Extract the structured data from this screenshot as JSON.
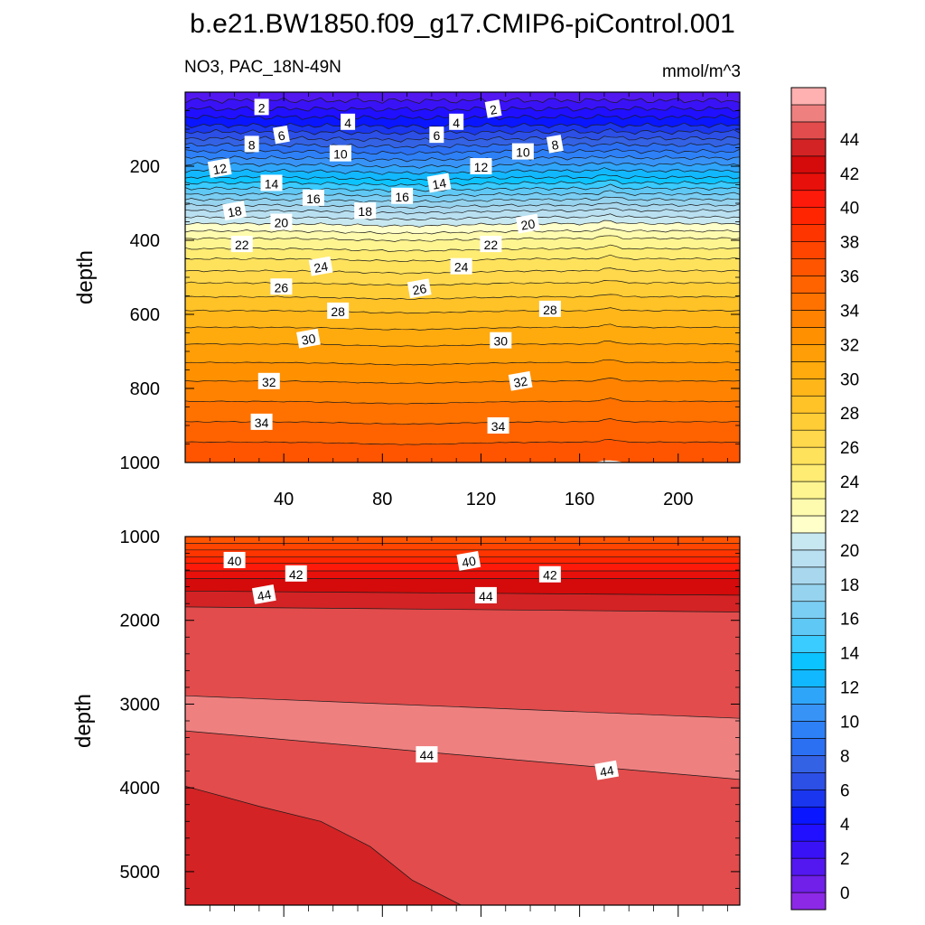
{
  "title": "b.e21.BW1850.f09_g17.CMIP6-piControl.001",
  "chart_data": [
    {
      "type": "contour",
      "panel": "upper",
      "variable_label": "NO3, PAC_18N-49N",
      "units_label": "mmol/m^3",
      "ylabel": "depth",
      "xlim": [
        0,
        225
      ],
      "ylim": [
        0,
        1000
      ],
      "y_inverted": true,
      "x_ticks": [
        "40",
        "80",
        "120",
        "160",
        "200"
      ],
      "x_tick_values": [
        40,
        80,
        120,
        160,
        200
      ],
      "y_ticks": [
        "200",
        "400",
        "600",
        "800",
        "1000"
      ],
      "y_tick_values": [
        200,
        400,
        600,
        800,
        1000
      ],
      "levels_depth": [
        {
          "level": 0,
          "depth": 0
        },
        {
          "level": 2,
          "depth": 45
        },
        {
          "level": 4,
          "depth": 90
        },
        {
          "level": 6,
          "depth": 125
        },
        {
          "level": 8,
          "depth": 160
        },
        {
          "level": 10,
          "depth": 195
        },
        {
          "level": 12,
          "depth": 230
        },
        {
          "level": 14,
          "depth": 260
        },
        {
          "level": 16,
          "depth": 290
        },
        {
          "level": 18,
          "depth": 320
        },
        {
          "level": 20,
          "depth": 355
        },
        {
          "level": 22,
          "depth": 395
        },
        {
          "level": 24,
          "depth": 450
        },
        {
          "level": 26,
          "depth": 515
        },
        {
          "level": 28,
          "depth": 590
        },
        {
          "level": 30,
          "depth": 680
        },
        {
          "level": 32,
          "depth": 780
        },
        {
          "level": 34,
          "depth": 890
        },
        {
          "level": 36,
          "depth": 1000
        }
      ],
      "contour_labels": [
        {
          "text": "2",
          "x": 31,
          "depth": 40
        },
        {
          "text": "2",
          "x": 125,
          "depth": 45
        },
        {
          "text": "4",
          "x": 66,
          "depth": 80
        },
        {
          "text": "4",
          "x": 110,
          "depth": 80
        },
        {
          "text": "6",
          "x": 39,
          "depth": 115
        },
        {
          "text": "6",
          "x": 102,
          "depth": 115
        },
        {
          "text": "8",
          "x": 27,
          "depth": 140
        },
        {
          "text": "8",
          "x": 150,
          "depth": 140
        },
        {
          "text": "10",
          "x": 63,
          "depth": 165
        },
        {
          "text": "10",
          "x": 137,
          "depth": 160
        },
        {
          "text": "12",
          "x": 14,
          "depth": 205
        },
        {
          "text": "12",
          "x": 120,
          "depth": 200
        },
        {
          "text": "14",
          "x": 35,
          "depth": 245
        },
        {
          "text": "14",
          "x": 103,
          "depth": 245
        },
        {
          "text": "16",
          "x": 52,
          "depth": 285
        },
        {
          "text": "16",
          "x": 88,
          "depth": 280
        },
        {
          "text": "18",
          "x": 20,
          "depth": 320
        },
        {
          "text": "18",
          "x": 73,
          "depth": 320
        },
        {
          "text": "20",
          "x": 39,
          "depth": 350
        },
        {
          "text": "20",
          "x": 139,
          "depth": 355
        },
        {
          "text": "22",
          "x": 23,
          "depth": 410
        },
        {
          "text": "22",
          "x": 124,
          "depth": 410
        },
        {
          "text": "24",
          "x": 55,
          "depth": 470
        },
        {
          "text": "24",
          "x": 112,
          "depth": 470
        },
        {
          "text": "26",
          "x": 39,
          "depth": 525
        },
        {
          "text": "26",
          "x": 95,
          "depth": 530
        },
        {
          "text": "28",
          "x": 62,
          "depth": 590
        },
        {
          "text": "28",
          "x": 148,
          "depth": 585
        },
        {
          "text": "30",
          "x": 50,
          "depth": 665
        },
        {
          "text": "30",
          "x": 128,
          "depth": 670
        },
        {
          "text": "32",
          "x": 34,
          "depth": 780
        },
        {
          "text": "32",
          "x": 136,
          "depth": 780
        },
        {
          "text": "34",
          "x": 31,
          "depth": 890
        },
        {
          "text": "34",
          "x": 127,
          "depth": 900
        }
      ]
    },
    {
      "type": "contour",
      "panel": "lower",
      "ylabel": "depth",
      "xlim": [
        0,
        225
      ],
      "ylim": [
        1000,
        5400
      ],
      "y_inverted": true,
      "y_ticks": [
        "1000",
        "2000",
        "3000",
        "4000",
        "5000"
      ],
      "y_tick_values": [
        1000,
        2000,
        3000,
        4000,
        5000
      ],
      "thin_bands_depth": [
        {
          "level": 36,
          "depth": 1000
        },
        {
          "level": 37,
          "depth": 1080
        },
        {
          "level": 38,
          "depth": 1160
        },
        {
          "level": 39,
          "depth": 1240
        },
        {
          "level": 40,
          "depth": 1320
        },
        {
          "level": 41,
          "depth": 1410
        },
        {
          "level": 42,
          "depth": 1500
        }
      ],
      "levels_profile": [
        {
          "level": 43,
          "depth_left": 1650,
          "depth_right": 1700
        },
        {
          "level": 44,
          "depth_left": 1840,
          "depth_right": 1900
        },
        {
          "level": 45,
          "depth_left": 2900,
          "depth_right": 3170
        },
        {
          "level": 44,
          "depth_left": 3320,
          "depth_right": 3900
        }
      ],
      "deep_level_43_boundary": [
        {
          "x": 0,
          "depth": 3980
        },
        {
          "x": 30,
          "depth": 4220
        },
        {
          "x": 55,
          "depth": 4400
        },
        {
          "x": 75,
          "depth": 4700
        },
        {
          "x": 92,
          "depth": 5100
        },
        {
          "x": 112,
          "depth": 5400
        }
      ],
      "contour_labels": [
        {
          "text": "40",
          "x": 20,
          "depth": 1280
        },
        {
          "text": "40",
          "x": 115,
          "depth": 1290
        },
        {
          "text": "42",
          "x": 45,
          "depth": 1440
        },
        {
          "text": "42",
          "x": 148,
          "depth": 1450
        },
        {
          "text": "44",
          "x": 32,
          "depth": 1690
        },
        {
          "text": "44",
          "x": 122,
          "depth": 1700
        },
        {
          "text": "44",
          "x": 98,
          "depth": 3600
        },
        {
          "text": "44",
          "x": 171,
          "depth": 3790
        }
      ]
    },
    {
      "type": "colorbar",
      "tick_labels": [
        "0",
        "2",
        "4",
        "6",
        "8",
        "10",
        "12",
        "14",
        "16",
        "18",
        "20",
        "22",
        "24",
        "26",
        "28",
        "30",
        "32",
        "34",
        "36",
        "38",
        "40",
        "42",
        "44"
      ],
      "levels_min": -1,
      "levels_max": 46,
      "colors": [
        "#8c29e6",
        "#7020e8",
        "#5318f0",
        "#3a12f6",
        "#2010ff",
        "#0a16ff",
        "#1a36ee",
        "#2c4fe6",
        "#3462e4",
        "#2b70f3",
        "#2e80f6",
        "#3893f7",
        "#2fa5fa",
        "#12b8ff",
        "#0bc3ff",
        "#3acbff",
        "#5fc8f4",
        "#7bcef3",
        "#96d3ee",
        "#a9d8ee",
        "#b9e0f1",
        "#c7e8f1",
        "#ffffc9",
        "#fffbae",
        "#fff590",
        "#ffec72",
        "#ffe25c",
        "#ffd84b",
        "#ffcd36",
        "#ffc227",
        "#ffb618",
        "#ffaa0d",
        "#ff9e06",
        "#ff9000",
        "#ff8200",
        "#ff7200",
        "#ff6300",
        "#ff5500",
        "#ff4500",
        "#ff3500",
        "#ff2500",
        "#fe1a0b",
        "#e8100a",
        "#d50a0a",
        "#d32325",
        "#e24c4c",
        "#ef8080",
        "#ffb0b0"
      ]
    }
  ]
}
